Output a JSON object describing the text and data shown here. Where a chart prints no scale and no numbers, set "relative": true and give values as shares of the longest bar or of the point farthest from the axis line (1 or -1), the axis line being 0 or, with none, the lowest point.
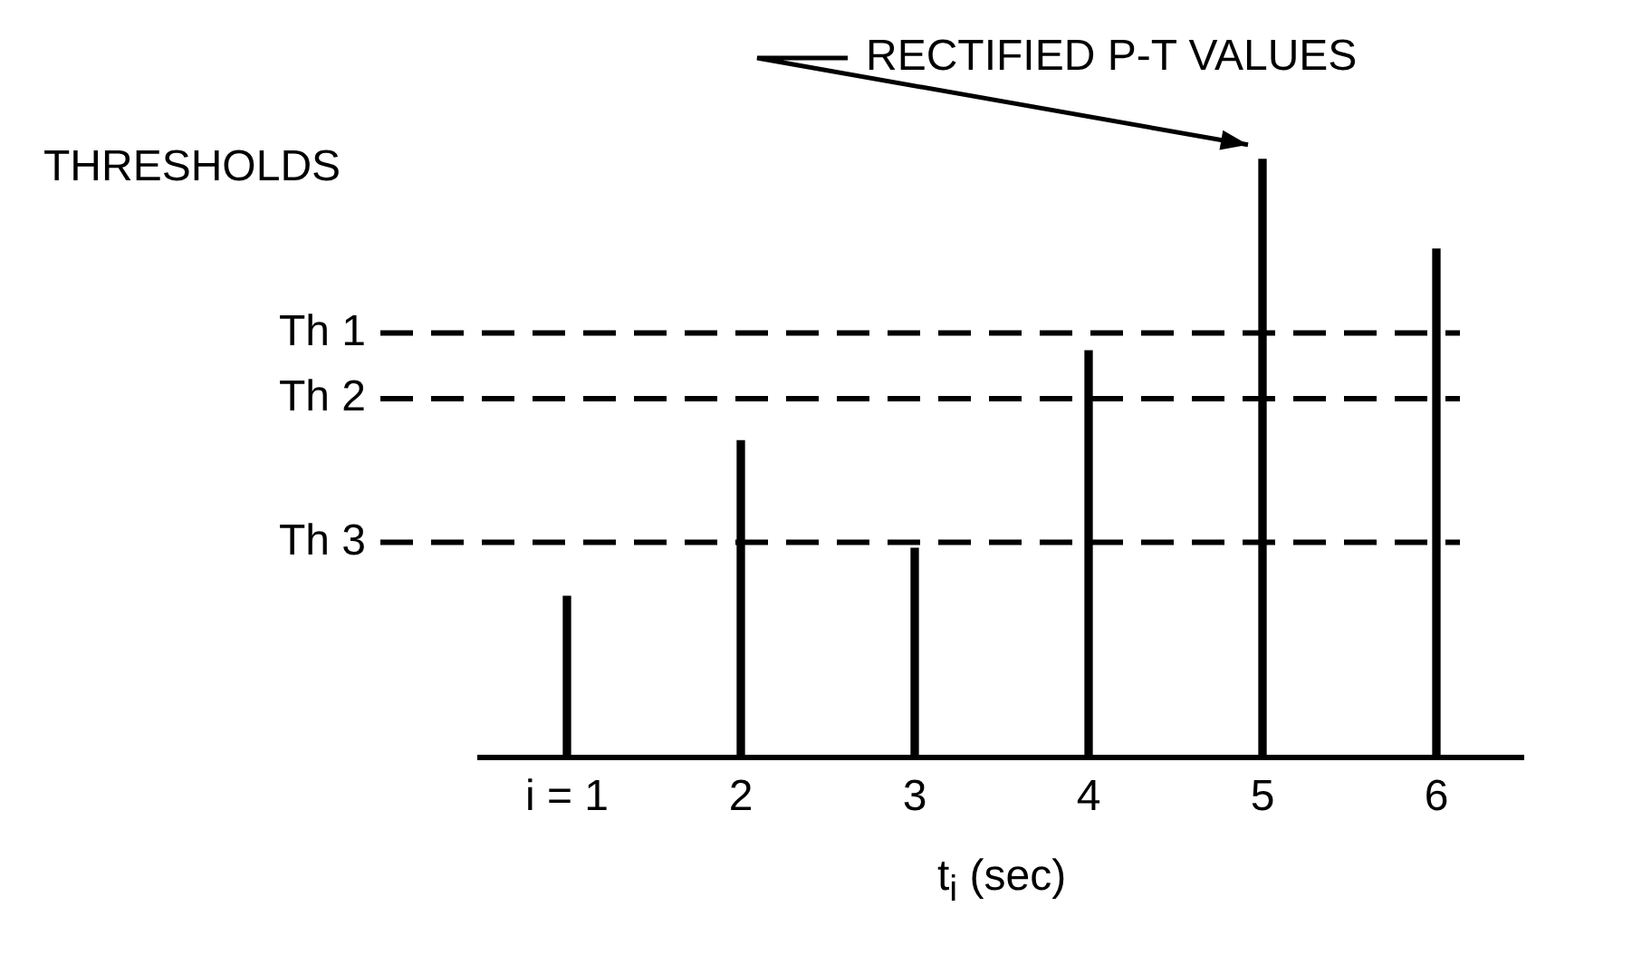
{
  "chart_data": {
    "type": "bar",
    "relative": true,
    "categories": [
      "i = 1",
      "2",
      "3",
      "4",
      "5",
      "6"
    ],
    "values": [
      0.27,
      0.53,
      0.35,
      0.68,
      1,
      0.85
    ],
    "color": "#000000",
    "xlabel": "t$_{i}$ (sec)",
    "grid": false,
    "legend": false,
    "ref_lines": [
      {
        "axis": "y",
        "value": 0.71,
        "label": "Th 1",
        "line_style": "dashed",
        "color": "#000000"
      },
      {
        "axis": "y",
        "value": 0.6,
        "label": "Th 2",
        "line_style": "dashed",
        "color": "#000000"
      },
      {
        "axis": "y",
        "value": 0.36,
        "label": "Th 3",
        "line_style": "dashed",
        "color": "#000000"
      }
    ],
    "annotations": [
      {
        "text": "RECTIFIED P-T VALUES",
        "x": "5",
        "y": 1
      },
      "THRESHOLDS"
    ]
  }
}
